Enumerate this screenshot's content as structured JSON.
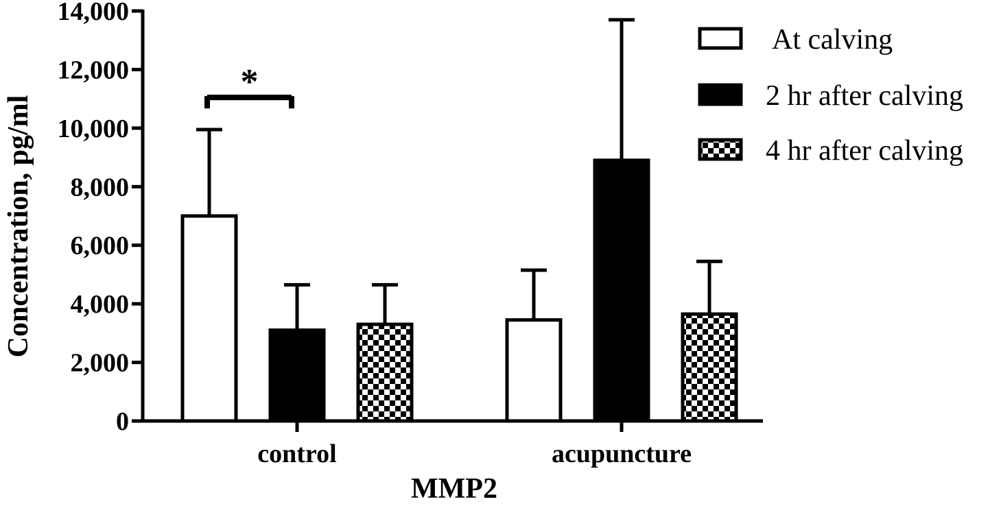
{
  "chart_data": {
    "type": "bar",
    "xlabel": "MMP2",
    "ylabel": "Concentration, pg/ml",
    "ylim": [
      0,
      14000
    ],
    "yticks": [
      0,
      2000,
      4000,
      6000,
      8000,
      10000,
      12000,
      14000
    ],
    "ytick_labels": [
      "0",
      "2,000",
      "4,000",
      "6,000",
      "8,000",
      "10,000",
      "12,000",
      "14,000"
    ],
    "categories": [
      "control",
      "acupuncture"
    ],
    "series": [
      {
        "name": "At calving",
        "pattern": "open",
        "values": [
          7000,
          3450
        ],
        "errors": [
          2950,
          1700
        ]
      },
      {
        "name": "2 hr after calving",
        "pattern": "solid",
        "values": [
          3100,
          8900
        ],
        "errors": [
          1550,
          4800
        ]
      },
      {
        "name": "4 hr after calving",
        "pattern": "checker",
        "values": [
          3300,
          3650
        ],
        "errors": [
          1350,
          1800
        ]
      }
    ],
    "legend": "top-right",
    "grid": false,
    "annotations": [
      {
        "text": "*",
        "category": "control",
        "from_series": 0,
        "to_series": 1,
        "level": 11000
      }
    ],
    "colors": {
      "bar_fill_solid": "#000000",
      "bar_fill_open": "#ffffff",
      "stroke": "#000000"
    }
  }
}
